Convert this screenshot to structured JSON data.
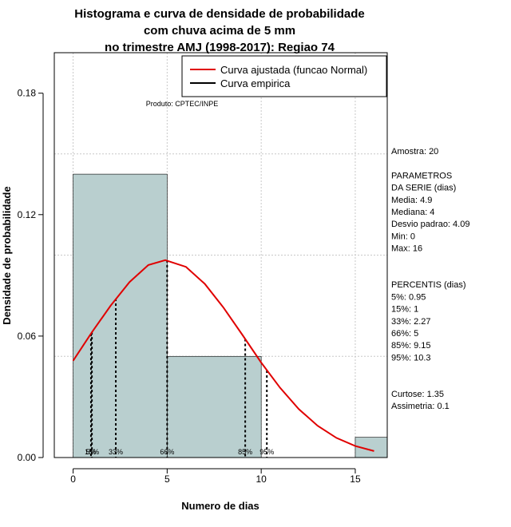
{
  "chart_data": {
    "type": "bar",
    "title_lines": [
      "Histograma e curva de densidade de probabilidade",
      "com chuva acima de 5 mm",
      "no trimestre AMJ (1998-2017): Regiao 74"
    ],
    "xlabel": "Numero de dias",
    "ylabel": "Densidade de probabilidade",
    "credit": "Produto: CPTEC/INPE",
    "xlim": [
      -1,
      16.7
    ],
    "ylim": [
      0,
      0.2
    ],
    "x_ticks": [
      0,
      5,
      10,
      15
    ],
    "y_ticks": [
      0.0,
      0.06,
      0.12,
      0.18
    ],
    "y_tick_labels": [
      "0.00",
      "0.06",
      "0.12",
      "0.18"
    ],
    "grid": true,
    "legend_position": "top-right",
    "histogram": {
      "breaks": [
        0,
        5,
        10,
        15,
        20
      ],
      "density": [
        0.14,
        0.05,
        0.0,
        0.01
      ],
      "fill_color": "#b9cfcf"
    },
    "series": [
      {
        "name": "Curva ajustada (funcao Normal)",
        "color": "#e00000",
        "x": [
          0,
          1,
          2,
          3,
          4,
          4.9,
          6,
          7,
          8,
          9,
          10,
          11,
          12,
          13,
          14,
          15,
          16
        ],
        "y": [
          0.0478,
          0.0619,
          0.0751,
          0.0867,
          0.0951,
          0.0975,
          0.0942,
          0.0858,
          0.074,
          0.0606,
          0.0469,
          0.0345,
          0.0239,
          0.0157,
          0.0097,
          0.0057,
          0.0032
        ]
      },
      {
        "name": "Curva empirica",
        "color": "#000000",
        "x": [],
        "y": []
      }
    ],
    "percentile_lines": [
      {
        "label": "5%",
        "x": 0.95,
        "y": 0.0611
      },
      {
        "label": "15%",
        "x": 1,
        "y": 0.0619
      },
      {
        "label": "33%",
        "x": 2.27,
        "y": 0.0785
      },
      {
        "label": "66%",
        "x": 5,
        "y": 0.0975
      },
      {
        "label": "85%",
        "x": 9.15,
        "y": 0.0586
      },
      {
        "label": "95%",
        "x": 10.3,
        "y": 0.043
      }
    ],
    "stats_panel": [
      "Amostra: 20",
      "",
      " PARAMETROS",
      "DA SERIE (dias)",
      "  Media: 4.9",
      "  Mediana: 4",
      "  Desvio padrao: 4.09",
      "  Min: 0",
      "  Max: 16",
      "",
      "",
      "PERCENTIS (dias)",
      "   5%: 0.95",
      "   15%: 1",
      "   33%: 2.27",
      "   66%: 5",
      "   85%: 9.15",
      "   95%: 10.3",
      "",
      "",
      "   Curtose: 1.35",
      "  Assimetria: 0.1"
    ]
  }
}
